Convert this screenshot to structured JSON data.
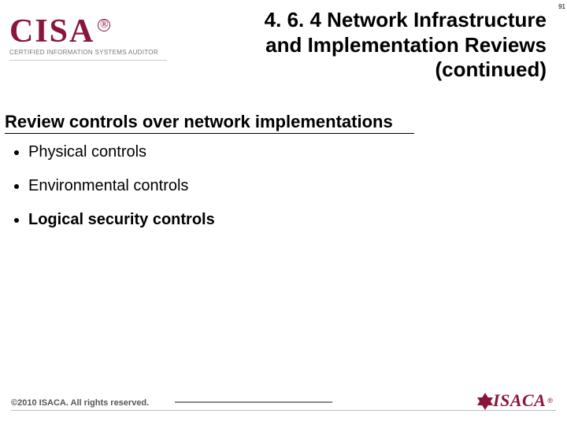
{
  "page_number": "91",
  "logo": {
    "primary": "CISA",
    "registered": "®",
    "subtitle": "Certified Information Systems Auditor"
  },
  "title_line1": "4. 6. 4 Network Infrastructure",
  "title_line2": "and Implementation Reviews",
  "title_line3": "(continued)",
  "heading": "Review controls over network implementations",
  "bullets": [
    "Physical controls",
    "Environmental controls",
    "Logical security controls"
  ],
  "footer": {
    "copyright": "©2010 ISACA. All rights reserved.",
    "brand": "ISACA",
    "brand_registered": "®"
  },
  "colors": {
    "brand": "#8a1538",
    "text": "#000000",
    "muted": "#777777",
    "footer_text": "#555555",
    "background": "#ffffff"
  },
  "typography": {
    "title_size_pt": 26,
    "heading_size_pt": 22,
    "bullet_size_pt": 20,
    "logo_size_pt": 42,
    "footer_size_pt": 11
  }
}
